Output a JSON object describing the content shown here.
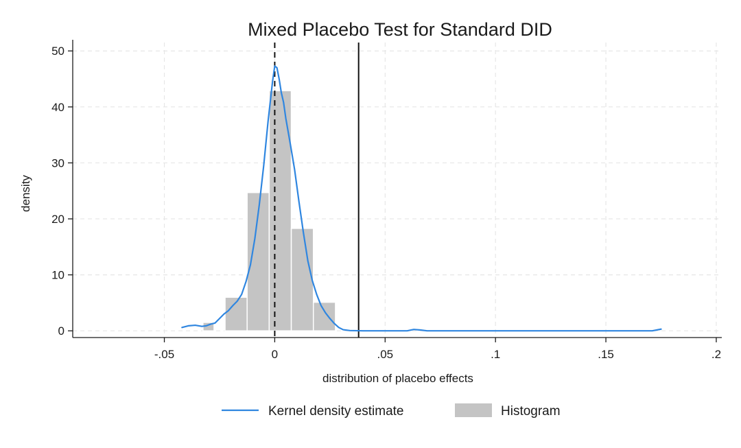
{
  "chart_data": {
    "type": "histogram",
    "title": "Mixed Placebo Test for Standard DID",
    "xlabel": "distribution of placebo effects",
    "ylabel": "density",
    "xlim": [
      -0.0915,
      0.2025
    ],
    "ylim": [
      -1.2,
      51.5
    ],
    "x_ticks": [
      {
        "value": -0.05,
        "label": "-.05"
      },
      {
        "value": 0,
        "label": "0"
      },
      {
        "value": 0.05,
        "label": ".05"
      },
      {
        "value": 0.1,
        "label": ".1"
      },
      {
        "value": 0.15,
        "label": ".15"
      },
      {
        "value": 0.2,
        "label": ".2"
      }
    ],
    "y_ticks": [
      {
        "value": 0,
        "label": "0"
      },
      {
        "value": 10,
        "label": "10"
      },
      {
        "value": 20,
        "label": "20"
      },
      {
        "value": 30,
        "label": "30"
      },
      {
        "value": 40,
        "label": "40"
      },
      {
        "value": 50,
        "label": "50"
      }
    ],
    "grid": true,
    "histogram": {
      "name": "Histogram",
      "color": "#c4c4c4",
      "bins": [
        {
          "x0": -0.0325,
          "x1": -0.0275,
          "density": 1.5
        },
        {
          "x0": -0.0225,
          "x1": -0.0125,
          "density": 6.0
        },
        {
          "x0": -0.0125,
          "x1": -0.0025,
          "density": 24.7
        },
        {
          "x0": -0.0025,
          "x1": 0.0075,
          "density": 42.9
        },
        {
          "x0": 0.0075,
          "x1": 0.0175,
          "density": 18.3
        },
        {
          "x0": 0.0175,
          "x1": 0.0275,
          "density": 5.1
        }
      ]
    },
    "kde": {
      "name": "Kernel density estimate",
      "color": "#2f86e0",
      "points": [
        [
          -0.042,
          0.6
        ],
        [
          -0.039,
          0.9
        ],
        [
          -0.036,
          1.0
        ],
        [
          -0.033,
          0.8
        ],
        [
          -0.031,
          0.9
        ],
        [
          -0.029,
          1.2
        ],
        [
          -0.027,
          1.4
        ],
        [
          -0.025,
          2.2
        ],
        [
          -0.023,
          3.0
        ],
        [
          -0.021,
          3.6
        ],
        [
          -0.019,
          4.5
        ],
        [
          -0.017,
          5.3
        ],
        [
          -0.015,
          6.5
        ],
        [
          -0.013,
          8.8
        ],
        [
          -0.011,
          11.8
        ],
        [
          -0.009,
          16.5
        ],
        [
          -0.007,
          22.5
        ],
        [
          -0.005,
          29.5
        ],
        [
          -0.003,
          37.5
        ],
        [
          -0.001,
          44.5
        ],
        [
          0.0,
          47.3
        ],
        [
          0.001,
          47.0
        ],
        [
          0.002,
          45.0
        ],
        [
          0.003,
          42.5
        ],
        [
          0.004,
          40.8
        ],
        [
          0.005,
          38.0
        ],
        [
          0.007,
          33.5
        ],
        [
          0.009,
          28.8
        ],
        [
          0.011,
          23.0
        ],
        [
          0.013,
          17.5
        ],
        [
          0.015,
          12.5
        ],
        [
          0.017,
          9.0
        ],
        [
          0.019,
          6.5
        ],
        [
          0.021,
          4.5
        ],
        [
          0.023,
          3.2
        ],
        [
          0.025,
          2.2
        ],
        [
          0.027,
          1.3
        ],
        [
          0.029,
          0.6
        ],
        [
          0.031,
          0.2
        ],
        [
          0.034,
          0.05
        ],
        [
          0.04,
          0.0
        ],
        [
          0.06,
          0.0
        ],
        [
          0.063,
          0.25
        ],
        [
          0.066,
          0.15
        ],
        [
          0.069,
          0.0
        ],
        [
          0.1,
          0.0
        ],
        [
          0.13,
          0.0
        ],
        [
          0.171,
          0.0
        ],
        [
          0.175,
          0.3
        ]
      ]
    },
    "reference_lines": [
      {
        "x": 0,
        "style": "dashed",
        "color": "#111111"
      },
      {
        "x": 0.038,
        "style": "solid",
        "color": "#111111"
      }
    ],
    "legend": {
      "position": "bottom",
      "items": [
        {
          "label": "Kernel density estimate",
          "kind": "line",
          "color": "#2f86e0"
        },
        {
          "label": "Histogram",
          "kind": "box",
          "color": "#c4c4c4"
        }
      ]
    }
  }
}
